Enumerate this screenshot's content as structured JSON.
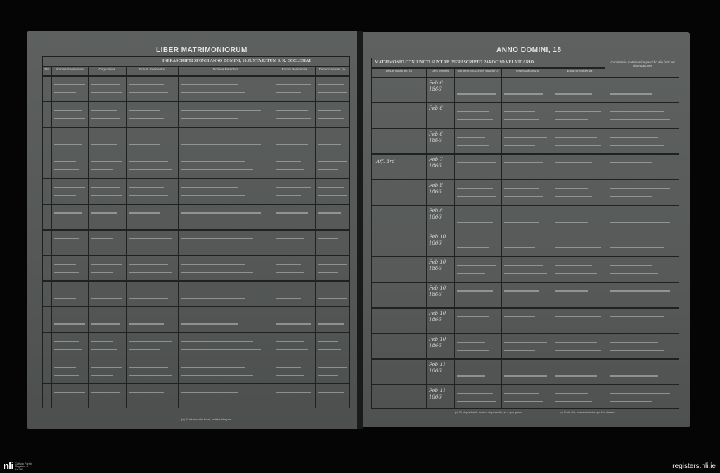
{
  "left_page": {
    "title": "LIBER MATRIMONIORUM",
    "banner": "INFRASCRIPTI SPONSI ANNO DOMINI, 18   JUXTA RITUM S. R. ECCLESIAE",
    "columns": [
      "No.",
      "Nomina Sponsorum",
      "Cognomina",
      "Eorum Residentia",
      "Nomina Parentum",
      "Eorum Residentia",
      "Denunciationes (a)"
    ],
    "footnote": "(a) Si dispensatio fuerit, notetur id a pos."
  },
  "right_page": {
    "title": "ANNO DOMINI, 18  ",
    "banner": "MATRIMONIO CONJUNCTI SUNT AB INFRASCRIPTO PAROCHO VEL VICARIO.",
    "columns": [
      "Dispensationes (b)",
      "Dies Mensis",
      "Nomen Parochi vel Vicarii (c)",
      "Testes adfuerunt",
      "Eorum Residentia",
      "Confirmatio matrimonii a parocho alio facti vel observationes"
    ],
    "footnotes": [
      "(b) Si aliqua fuerit, notetur dispensatio, et a quo gradu.",
      "(c) Si ab alio, nomen notetur quo facultatem."
    ]
  },
  "rows": [
    {
      "date": "Feb 6 1866"
    },
    {
      "date": "Feb 6"
    },
    {
      "date": "Feb 6 1866"
    },
    {
      "date": "Feb 7 1866",
      "dispensation": "Aff. 3rd"
    },
    {
      "date": "Feb 8 1866"
    },
    {
      "date": "Feb 8 1866"
    },
    {
      "date": "Feb 10 1866"
    },
    {
      "date": "Feb 10 1866"
    },
    {
      "date": "Feb 10 1866"
    },
    {
      "date": "Feb 10 1866"
    },
    {
      "date": "Feb 10 1866"
    },
    {
      "date": "Feb 11 1866"
    },
    {
      "date": "Feb 11 1866"
    }
  ],
  "branding": {
    "logo": "nli",
    "logo_caption": "Catholic Parish Registers at the NLI",
    "site": "registers.nli.ie"
  },
  "colors": {
    "background": "#050505",
    "page": "#5a5d5c",
    "ink": "#d6d8d7"
  }
}
